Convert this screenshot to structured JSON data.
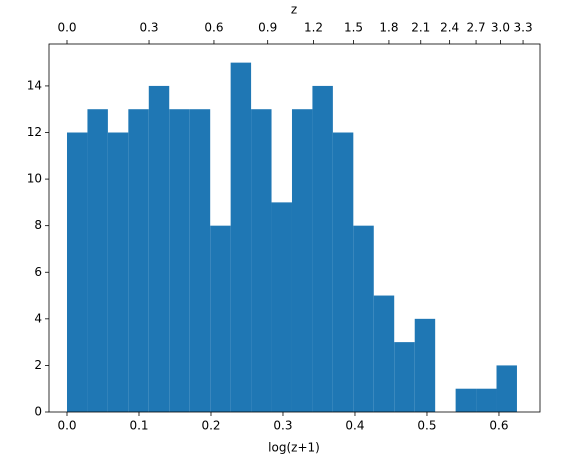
{
  "chart_data": {
    "type": "histogram",
    "xlabel": "log(z+1)",
    "x2label": "z",
    "bins": [
      0,
      0.0284,
      0.0568,
      0.0852,
      0.1136,
      0.142,
      0.1705,
      0.1989,
      0.2273,
      0.2557,
      0.2841,
      0.3125,
      0.3409,
      0.3693,
      0.3977,
      0.4261,
      0.4545,
      0.483,
      0.5114,
      0.5398,
      0.5682,
      0.5966,
      0.625
    ],
    "values": [
      12,
      13,
      12,
      13,
      14,
      13,
      13,
      8,
      15,
      13,
      9,
      13,
      14,
      12,
      8,
      5,
      3,
      4,
      0,
      1,
      1,
      2
    ],
    "color": "#1f77b4",
    "xlim": [
      -0.025,
      0.657
    ],
    "ylim": [
      0,
      15.8
    ],
    "xticks": [
      {
        "value": 0,
        "label": "0.0"
      },
      {
        "value": 0.1,
        "label": "0.1"
      },
      {
        "value": 0.2,
        "label": "0.2"
      },
      {
        "value": 0.3,
        "label": "0.3"
      },
      {
        "value": 0.4,
        "label": "0.4"
      },
      {
        "value": 0.5,
        "label": "0.5"
      },
      {
        "value": 0.6,
        "label": "0.6"
      }
    ],
    "yticks": [
      0,
      2,
      4,
      6,
      8,
      10,
      12,
      14
    ],
    "x2ticks": [
      {
        "value": 0,
        "label": "0.0"
      },
      {
        "value": 0.3,
        "label": "0.3"
      },
      {
        "value": 0.6,
        "label": "0.6"
      },
      {
        "value": 0.9,
        "label": "0.9"
      },
      {
        "value": 1.2,
        "label": "1.2"
      },
      {
        "value": 1.5,
        "label": "1.5"
      },
      {
        "value": 1.8,
        "label": "1.8"
      },
      {
        "value": 2.1,
        "label": "2.1"
      },
      {
        "value": 2.4,
        "label": "2.4"
      },
      {
        "value": 2.7,
        "label": "2.7"
      },
      {
        "value": 3.0,
        "label": "3.0"
      },
      {
        "value": 3.3,
        "label": "3.3"
      }
    ]
  }
}
